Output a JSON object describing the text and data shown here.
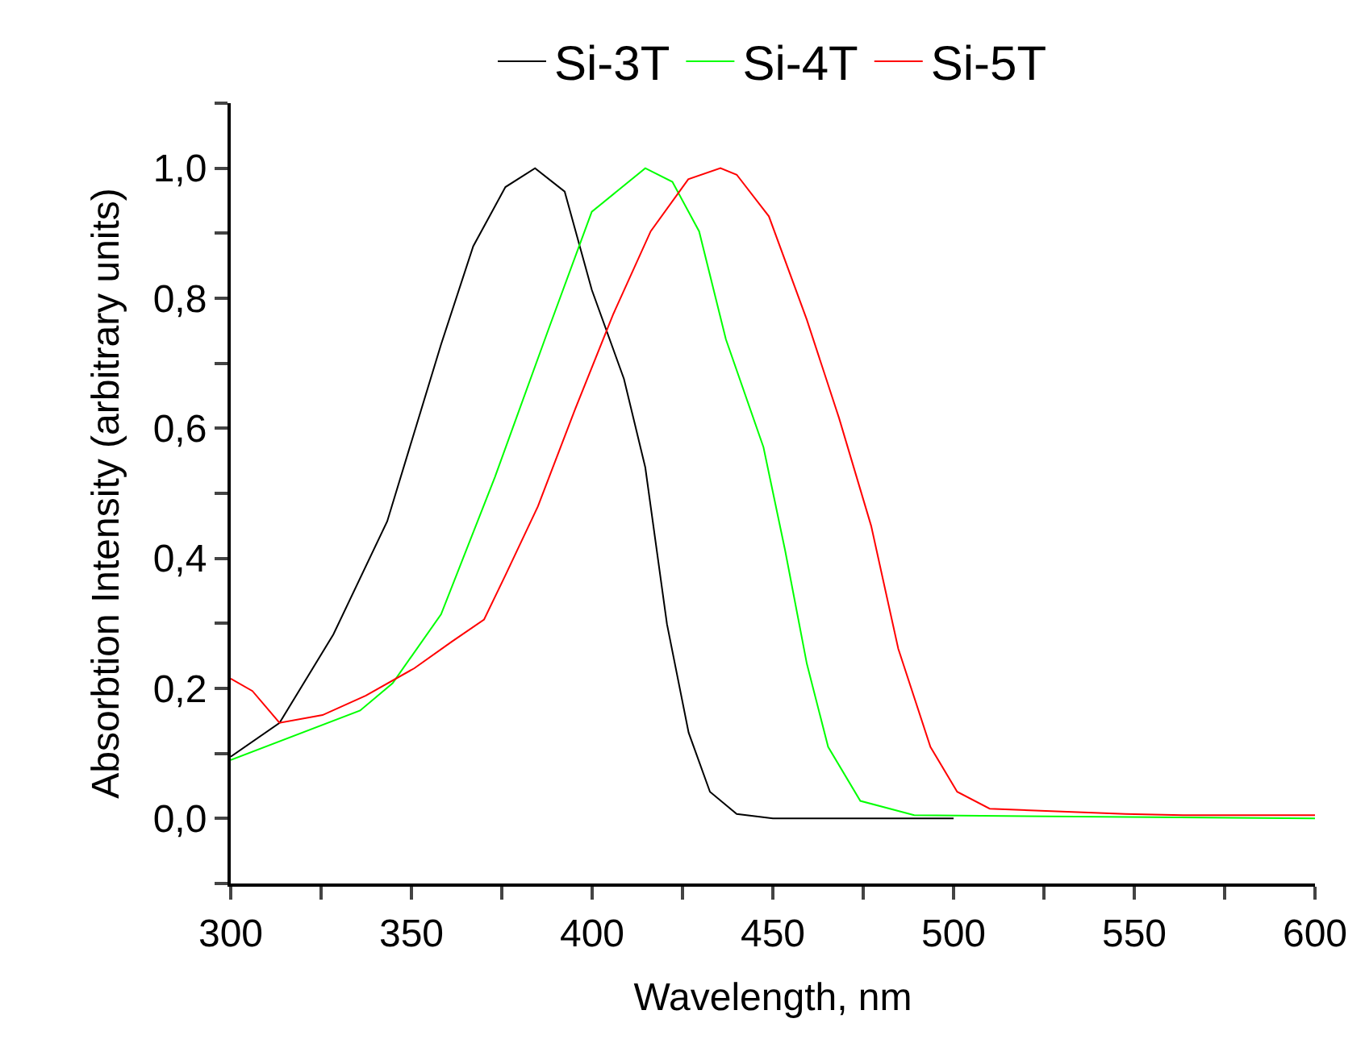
{
  "chart_data": {
    "type": "line",
    "xlabel": "Wavelength, nm",
    "ylabel": "Absorbtion Intensity (arbitrary units)",
    "xlim": [
      300,
      600
    ],
    "ylim": [
      -0.1,
      1.1
    ],
    "xticks": [
      300,
      {
        "value": 325,
        "label": null
      },
      350,
      {
        "value": 375,
        "label": null
      },
      400,
      {
        "value": 425,
        "label": null
      },
      450,
      {
        "value": 475,
        "label": null
      },
      500,
      {
        "value": 525,
        "label": null
      },
      550,
      {
        "value": 575,
        "label": null
      },
      600
    ],
    "yticks": [
      {
        "value": -0.1,
        "label": null
      },
      {
        "value": 0,
        "label": "0,0"
      },
      {
        "value": 0.1,
        "label": null
      },
      {
        "value": 0.2,
        "label": "0,2"
      },
      {
        "value": 0.3,
        "label": null
      },
      {
        "value": 0.4,
        "label": "0,4"
      },
      {
        "value": 0.5,
        "label": null
      },
      {
        "value": 0.6,
        "label": "0,6"
      },
      {
        "value": 0.7,
        "label": null
      },
      {
        "value": 0.8,
        "label": "0,8"
      },
      {
        "value": 0.9,
        "label": null
      },
      {
        "value": 1,
        "label": "1,0"
      },
      {
        "value": 1.1,
        "label": null
      }
    ],
    "grid": false,
    "legend": "top",
    "marker": "none",
    "line_style": "solid",
    "series": [
      {
        "name": "Si-3T",
        "color": "#000000",
        "x": [
          300,
          313.5,
          328.4,
          343.3,
          358.2,
          367.1,
          376,
          384.2,
          392.4,
          399.9,
          408.8,
          414.7,
          420.7,
          426.7,
          432.6,
          440,
          450,
          500
        ],
        "values": [
          0.095,
          0.147,
          0.283,
          0.457,
          0.729,
          0.88,
          0.971,
          1,
          0.964,
          0.813,
          0.676,
          0.54,
          0.299,
          0.132,
          0.041,
          0.007,
          0,
          0
        ]
      },
      {
        "name": "Si-4T",
        "color": "#00ff00",
        "x": [
          300,
          335.8,
          344.8,
          358.2,
          373.1,
          387.9,
          399.9,
          414.7,
          422.2,
          429.6,
          437,
          447.4,
          453.4,
          459.4,
          465.3,
          474.2,
          489.1,
          600
        ],
        "values": [
          0.09,
          0.166,
          0.208,
          0.314,
          0.525,
          0.752,
          0.933,
          1,
          0.979,
          0.903,
          0.737,
          0.571,
          0.412,
          0.238,
          0.11,
          0.027,
          0.005,
          0
        ]
      },
      {
        "name": "Si-5T",
        "color": "#ff0000",
        "x": [
          300,
          306,
          313.5,
          325.4,
          337.4,
          350.8,
          361.2,
          370.1,
          376,
          385,
          395.4,
          405.8,
          416.2,
          426.6,
          435.5,
          440,
          448.9,
          459.4,
          468.3,
          477.2,
          484.7,
          493.6,
          501,
          510,
          547.6,
          563.5,
          600
        ],
        "values": [
          0.215,
          0.196,
          0.147,
          0.159,
          0.189,
          0.231,
          0.272,
          0.306,
          0.374,
          0.48,
          0.631,
          0.775,
          0.903,
          0.983,
          1,
          0.99,
          0.926,
          0.767,
          0.616,
          0.45,
          0.261,
          0.11,
          0.041,
          0.015,
          0.007,
          0.005,
          0.005
        ]
      }
    ]
  }
}
